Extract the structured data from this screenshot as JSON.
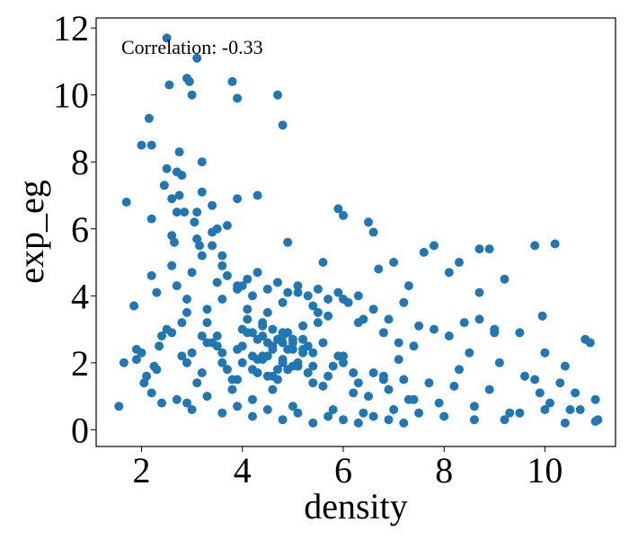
{
  "chart_data": {
    "type": "scatter",
    "title": "",
    "xlabel": "density",
    "ylabel": "exp_eg",
    "annotation": "Correlation: -0.33",
    "xlim": [
      1.1,
      11.4
    ],
    "ylim": [
      -0.5,
      12.3
    ],
    "xticks": [
      2,
      4,
      6,
      8,
      10
    ],
    "yticks": [
      0,
      2,
      4,
      6,
      8,
      10,
      12
    ],
    "grid": false,
    "point_color": "#1f77b4",
    "x": [
      1.55,
      1.7,
      1.85,
      1.9,
      2.0,
      2.05,
      2.1,
      2.15,
      2.2,
      2.25,
      2.3,
      2.35,
      2.4,
      2.45,
      2.5,
      2.55,
      2.6,
      2.65,
      2.7,
      2.75,
      2.8,
      2.85,
      2.9,
      2.95,
      3.0,
      3.05,
      3.1,
      3.15,
      3.2,
      2.5,
      2.6,
      3.1,
      3.0,
      2.2,
      2.0,
      2.75,
      2.9,
      3.6,
      3.8,
      4.3,
      4.7,
      4.8,
      3.9,
      3.9,
      3.7,
      3.2,
      3.4,
      3.5,
      2.7,
      2.8,
      2.2,
      1.65,
      5.9,
      6.5,
      6.6,
      6.0,
      7.0,
      7.6,
      7.8,
      8.3,
      8.7,
      8.9,
      8.7,
      9.2,
      9.8,
      10.2,
      9.95,
      10.8,
      10.9,
      10.4,
      9.3,
      9.9,
      10.0,
      11.0,
      11.05,
      10.5,
      10.0,
      9.5,
      9.0,
      8.6,
      8.2,
      7.9,
      7.4,
      6.8,
      6.4,
      5.8,
      5.5,
      5.2,
      4.9,
      4.6,
      4.3,
      4.0,
      3.7,
      3.4,
      3.1,
      2.8,
      2.5,
      2.2,
      1.9,
      2.3,
      2.6,
      2.9,
      3.2,
      3.5,
      3.8,
      4.1,
      4.4,
      4.7,
      5.0,
      5.3,
      5.6,
      5.9,
      6.2,
      6.5,
      6.8,
      7.1,
      7.4,
      7.7,
      8.0,
      8.3,
      8.6,
      8.9,
      9.2,
      9.5,
      9.8,
      10.1,
      10.4,
      10.7,
      11.0,
      3.3,
      3.6,
      3.9,
      4.2,
      4.5,
      4.8,
      5.1,
      5.4,
      5.7,
      6.0,
      6.3,
      6.6,
      6.9,
      7.2,
      7.5,
      7.8,
      8.1,
      8.4,
      8.7,
      9.0,
      3.0,
      3.3,
      3.6,
      3.9,
      4.2,
      4.5,
      4.8,
      5.1,
      5.4,
      5.7,
      6.0,
      6.3,
      6.6,
      6.9,
      7.2,
      4.0,
      4.2,
      4.4,
      4.6,
      4.8,
      5.0,
      5.2,
      5.4,
      4.1,
      4.3,
      4.5,
      4.7,
      4.9,
      5.1,
      5.3,
      4.0,
      4.4,
      4.8,
      5.2,
      5.6,
      6.0,
      3.8,
      4.6,
      5.4,
      6.2,
      4.2,
      5.0,
      5.8,
      3.5,
      3.7,
      3.9,
      4.1,
      4.3,
      4.5,
      4.7,
      4.9,
      5.1,
      5.3,
      5.5,
      5.7,
      5.9,
      6.1,
      6.3,
      2.4,
      2.7,
      3.0,
      3.3,
      3.6,
      3.9,
      4.2,
      4.5,
      4.8,
      5.1,
      5.4,
      5.7,
      6.0,
      6.3,
      6.6,
      6.9,
      7.2,
      7.5,
      2.6,
      3.1,
      3.4,
      4.9,
      5.6,
      6.7,
      7.3,
      8.1,
      4.4,
      4.6,
      4.8,
      5.0,
      4.3,
      4.5,
      4.7,
      4.9,
      5.1,
      4.2,
      4.4,
      4.6,
      4.8,
      5.0,
      5.2,
      3.4,
      3.2,
      3.6,
      4.0,
      5.5,
      6.4,
      6.8,
      7.1,
      8.5,
      9.1,
      9.6,
      10.3,
      10.6,
      7.0,
      7.3,
      2.9,
      3.3,
      3.2,
      3.5,
      2.7,
      2.9,
      3.6,
      3.9,
      4.1
    ],
    "y": [
      0.7,
      6.8,
      3.7,
      2.1,
      2.3,
      1.4,
      1.6,
      9.3,
      8.5,
      1.9,
      4.1,
      2.5,
      2.8,
      7.3,
      11.7,
      10.3,
      6.9,
      5.6,
      7.7,
      8.3,
      3.2,
      6.5,
      10.5,
      10.4,
      10.0,
      6.2,
      11.1,
      5.5,
      7.1,
      7.8,
      4.9,
      6.5,
      4.7,
      6.3,
      8.5,
      7.0,
      3.5,
      5.2,
      10.4,
      7.0,
      10.0,
      9.1,
      9.9,
      6.9,
      6.1,
      8.0,
      6.7,
      6.0,
      6.5,
      7.6,
      4.6,
      2.0,
      6.6,
      6.2,
      5.9,
      6.4,
      5.0,
      5.3,
      5.5,
      5.0,
      5.4,
      5.4,
      4.1,
      4.5,
      5.5,
      5.55,
      3.4,
      2.7,
      2.6,
      1.9,
      0.5,
      1.1,
      2.3,
      0.9,
      0.3,
      0.6,
      0.6,
      2.9,
      3.0,
      0.3,
      1.3,
      0.8,
      2.5,
      1.5,
      0.5,
      1.9,
      3.2,
      2.4,
      2.9,
      1.6,
      2.7,
      2.0,
      1.8,
      2.6,
      1.4,
      2.2,
      3.0,
      1.1,
      2.4,
      1.8,
      2.9,
      0.8,
      1.7,
      2.8,
      1.2,
      3.3,
      2.1,
      2.7,
      1.9,
      2.5,
      1.3,
      2.2,
      1.7,
      1.0,
      1.6,
      2.1,
      0.9,
      1.4,
      0.4,
      1.8,
      0.7,
      1.2,
      0.3,
      0.5,
      1.5,
      0.8,
      0.2,
      0.6,
      0.25,
      3.6,
      3.9,
      4.2,
      4.0,
      3.5,
      3.8,
      4.1,
      3.7,
      3.4,
      3.9,
      3.2,
      3.6,
      3.3,
      3.8,
      3.1,
      3.0,
      2.8,
      3.2,
      3.3,
      2.9,
      2.3,
      2.6,
      2.0,
      2.4,
      1.8,
      2.2,
      2.6,
      1.9,
      2.3,
      1.6,
      2.0,
      1.4,
      1.7,
      1.2,
      1.5,
      2.5,
      2.2,
      2.8,
      2.4,
      2.0,
      2.7,
      2.3,
      1.9,
      2.9,
      2.1,
      2.6,
      1.8,
      2.4,
      2.0,
      1.7,
      3.0,
      3.2,
      2.9,
      3.1,
      2.6,
      2.2,
      1.5,
      1.2,
      1.4,
      1.1,
      0.9,
      0.7,
      0.6,
      4.4,
      4.6,
      4.3,
      4.5,
      4.7,
      4.2,
      4.4,
      4.1,
      4.3,
      4.0,
      4.2,
      3.9,
      4.1,
      3.8,
      4.0,
      0.8,
      0.9,
      0.6,
      1.0,
      0.5,
      0.7,
      0.4,
      0.6,
      0.3,
      0.5,
      0.2,
      0.4,
      0.3,
      0.2,
      0.4,
      0.3,
      0.2,
      0.5,
      5.8,
      5.7,
      5.5,
      5.6,
      5.0,
      4.8,
      4.3,
      4.7,
      2.2,
      2.5,
      2.1,
      2.4,
      1.7,
      1.6,
      1.5,
      1.8,
      1.9,
      2.9,
      3.1,
      3.0,
      2.8,
      2.6,
      2.7,
      5.9,
      5.2,
      4.9,
      4.3,
      3.5,
      3.3,
      2.9,
      2.6,
      2.3,
      2.0,
      1.6,
      1.4,
      1.1,
      0.6,
      0.9,
      3.9,
      3.2,
      2.8,
      2.5,
      4.3,
      2.0,
      2.3,
      1.5,
      3.6
    ]
  }
}
